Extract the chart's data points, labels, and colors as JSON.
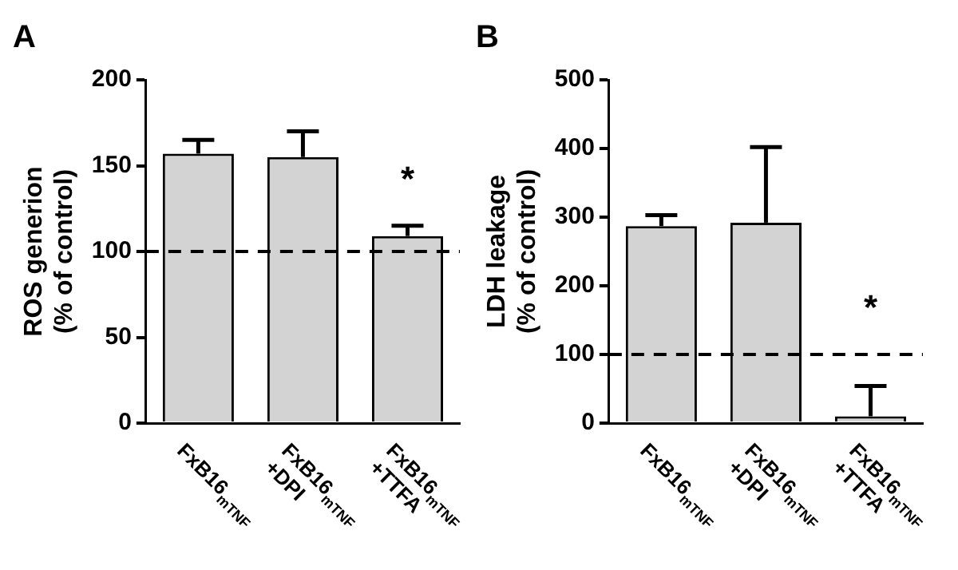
{
  "chart_data": [
    {
      "type": "bar",
      "title": "A",
      "ylabel": "ROS generion\n(% of control)",
      "categories": [
        "FxB16$_{mTNF}$",
        "FxB16$_{mTNF}$\n+DPI",
        "FxB16$_{mTNF}$\n+TTFA"
      ],
      "values": [
        157,
        155,
        109
      ],
      "errors": [
        [
          157,
          165
        ],
        [
          155,
          170
        ],
        [
          109,
          115
        ]
      ],
      "color": "#d3d3d3",
      "ylim": [
        0,
        200
      ],
      "yticks": [
        0,
        50,
        100,
        150,
        200
      ],
      "grid": false,
      "legend": false,
      "ref_lines": [
        {
          "axis": "y",
          "value": 100,
          "line_style": "dashed",
          "color": "#000000"
        }
      ],
      "annotations": [
        "*"
      ]
    },
    {
      "type": "bar",
      "title": "B",
      "ylabel": "LDH leakage\n(% of control)",
      "categories": [
        "FxB16$_{mTNF}$",
        "FxB16$_{mTNF}$\n+DPI",
        "FxB16$_{mTNF}$\n+TTFA"
      ],
      "values": [
        287,
        292,
        10
      ],
      "errors": [
        [
          287,
          303
        ],
        [
          292,
          402
        ],
        [
          10,
          54
        ]
      ],
      "color": "#d3d3d3",
      "ylim": [
        0,
        500
      ],
      "yticks": [
        0,
        100,
        200,
        300,
        400,
        500
      ],
      "grid": false,
      "legend": false,
      "ref_lines": [
        {
          "axis": "y",
          "value": 100,
          "line_style": "dashed",
          "color": "#000000"
        }
      ],
      "annotations": [
        "*"
      ]
    }
  ]
}
